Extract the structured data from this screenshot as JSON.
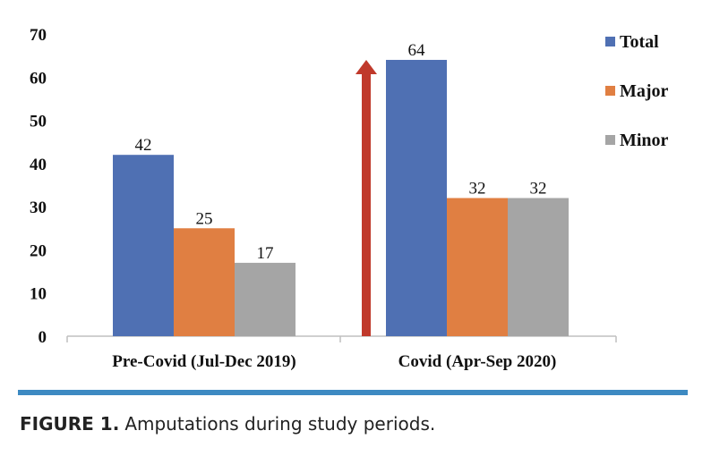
{
  "chart_data": {
    "type": "bar",
    "title": "",
    "xlabel": "",
    "ylabel": "",
    "ylim": [
      0,
      70
    ],
    "yticks": [
      0,
      10,
      20,
      30,
      40,
      50,
      60,
      70
    ],
    "grid": false,
    "legend_position": "top-right",
    "categories": [
      "Pre-Covid (Jul-Dec 2019)",
      "Covid (Apr-Sep 2020)"
    ],
    "series": [
      {
        "name": "Total",
        "color": "#4f70b3",
        "values": [
          42,
          64
        ]
      },
      {
        "name": "Major",
        "color": "#e07f42",
        "values": [
          25,
          32
        ]
      },
      {
        "name": "Minor",
        "color": "#a5a5a5",
        "values": [
          17,
          32
        ]
      }
    ],
    "annotations": [
      {
        "type": "arrow",
        "direction": "up",
        "color": "#c0392b",
        "category": "Covid (Apr-Sep 2020)",
        "from": 0,
        "to": 64
      }
    ]
  },
  "colors": {
    "rule": "#3d8ac2",
    "text": "#111111"
  },
  "caption": {
    "label": "FIGURE 1.",
    "text": "Amputations during study periods."
  }
}
